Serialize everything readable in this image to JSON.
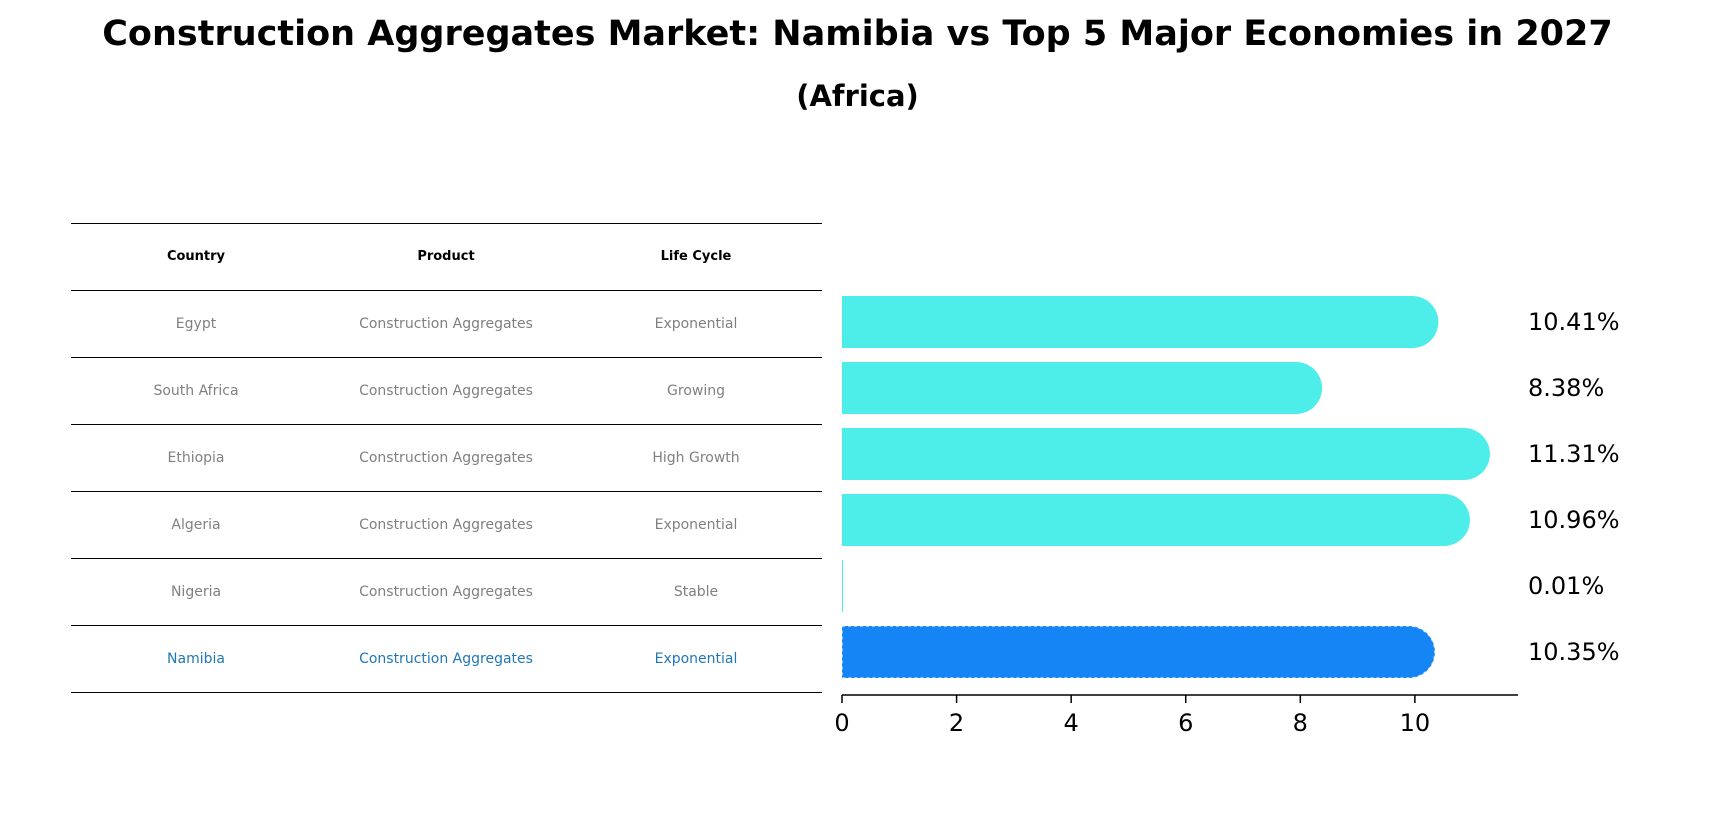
{
  "title": "Construction Aggregates Market: Namibia vs Top 5 Major Economies in 2027",
  "subtitle": "(Africa)",
  "table": {
    "headers": [
      "Country",
      "Product",
      "Life Cycle"
    ],
    "rows": [
      [
        "Egypt",
        "Construction Aggregates",
        "Exponential"
      ],
      [
        "South Africa",
        "Construction Aggregates",
        "Growing"
      ],
      [
        "Ethiopia",
        "Construction Aggregates",
        "High Growth"
      ],
      [
        "Algeria",
        "Construction Aggregates",
        "Exponential"
      ],
      [
        "Nigeria",
        "Construction Aggregates",
        "Stable"
      ],
      [
        "Namibia",
        "Construction Aggregates",
        "Exponential"
      ]
    ],
    "highlight_row": 5,
    "highlight_color": "#1f77b4"
  },
  "chart_data": {
    "type": "bar",
    "orientation": "horizontal",
    "categories": [
      "Egypt",
      "South Africa",
      "Ethiopia",
      "Algeria",
      "Nigeria",
      "Namibia"
    ],
    "values": [
      10.41,
      8.38,
      11.31,
      10.96,
      0.01,
      10.35
    ],
    "value_labels": [
      "10.41%",
      "8.38%",
      "11.31%",
      "10.96%",
      "0.01%",
      "10.35%"
    ],
    "xlim": [
      0,
      11.8
    ],
    "xticks": [
      0,
      2,
      4,
      6,
      8,
      10
    ],
    "grid": false,
    "colors": {
      "default": "#4deeea",
      "highlight": "#1585f5"
    },
    "highlight_index": 5
  }
}
